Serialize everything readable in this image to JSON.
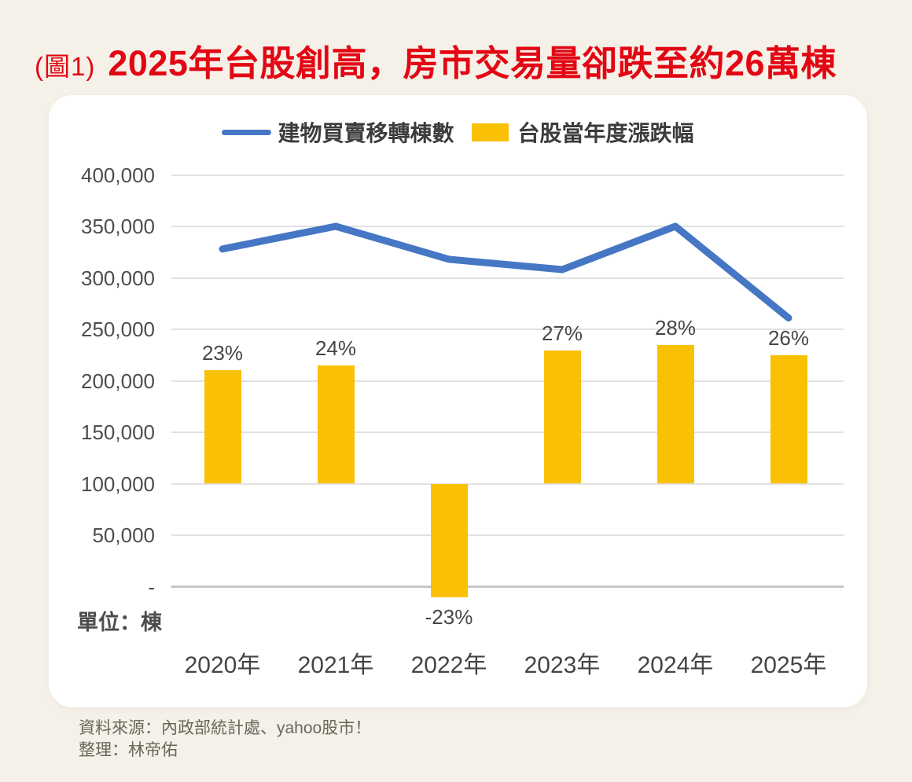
{
  "title": {
    "prefix": "(圖1)",
    "text": "2025年台股創高，房市交易量卻跌至約26萬棟"
  },
  "legend": [
    {
      "label": "建物買賣移轉棟數",
      "swatch": "line"
    },
    {
      "label": "台股當年度漲跌幅",
      "swatch": "bar"
    }
  ],
  "unit_label": "單位：棟",
  "footer": {
    "line1": "資料來源：內政部統計處、yahoo股市！",
    "line2": "整理：林帝佑"
  },
  "colors": {
    "background": "#F5F1E8",
    "card": "#FFFFFF",
    "title_red": "#E30613",
    "line_blue": "#4677C5",
    "bar_yellow": "#FAC003",
    "gridline": "#E1E1E1",
    "axis_line": "#C6C6C6"
  },
  "chart_data": {
    "type": "combo line+bar",
    "categories": [
      "2020年",
      "2021年",
      "2022年",
      "2023年",
      "2024年",
      "2025年"
    ],
    "series": [
      {
        "name": "建物買賣移轉棟數",
        "type": "line",
        "axis": "left",
        "values": [
          328000,
          350000,
          318000,
          308000,
          350000,
          261000
        ]
      },
      {
        "name": "台股當年度漲跌幅",
        "type": "bar",
        "axis": "secondary-hidden",
        "values_pct": [
          23,
          24,
          -23,
          27,
          28,
          26
        ],
        "labels": [
          "23%",
          "24%",
          "-23%",
          "27%",
          "28%",
          "26%"
        ]
      }
    ],
    "y_axis": {
      "title": "單位：棟",
      "tick_labels": [
        "400,000",
        "350,000",
        "300,000",
        "250,000",
        "200,000",
        "150,000",
        "100,000",
        "50,000",
        "-"
      ],
      "tick_values": [
        400000,
        350000,
        300000,
        250000,
        200000,
        150000,
        100000,
        50000,
        0
      ],
      "range": [
        0,
        400000
      ],
      "grid": true
    },
    "secondary_axis": {
      "unit": "%",
      "zero_anchored_at_primary_value": 100000,
      "primary_units_per_pct": 4800,
      "note": "percentage axis not drawn; -23% bar hangs below the 100,000 line"
    },
    "legend_position": "top-center"
  }
}
